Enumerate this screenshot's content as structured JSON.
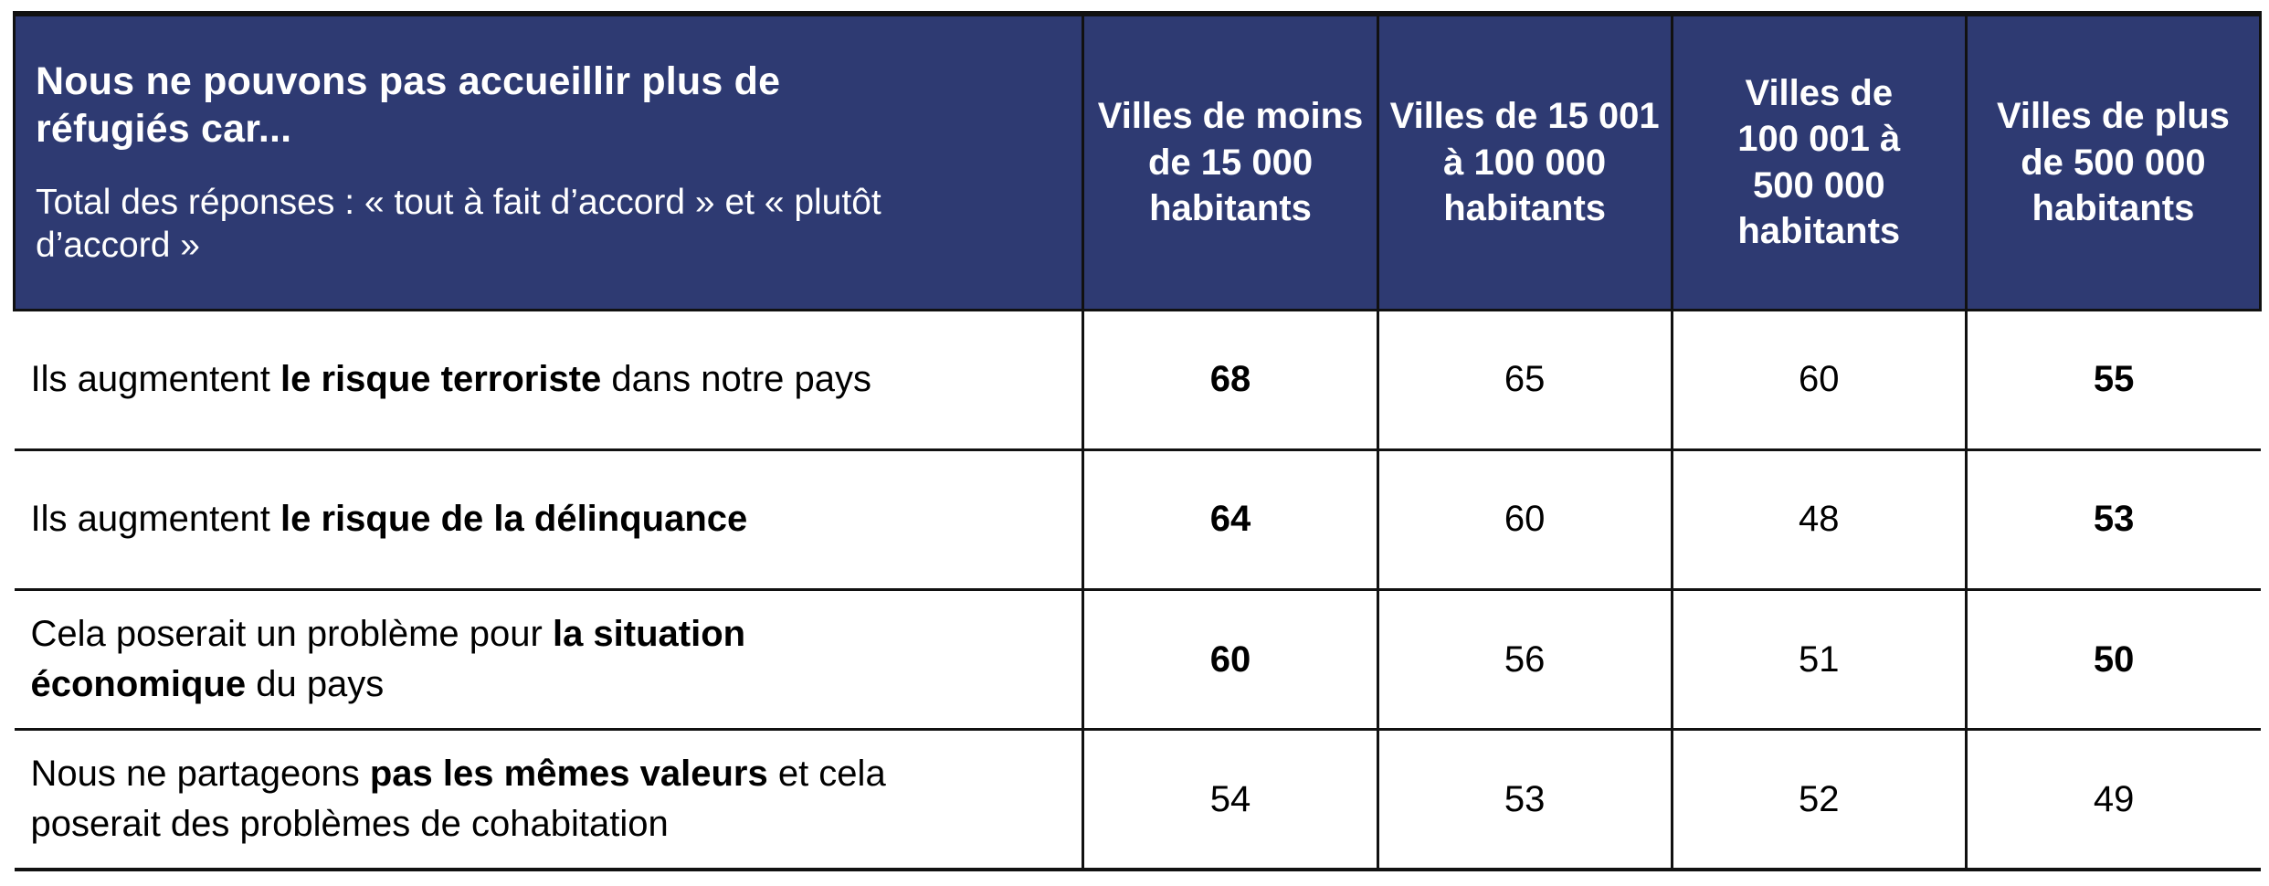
{
  "colors": {
    "header_bg": "#2e3a72",
    "header_text": "#ffffff",
    "body_text": "#000000",
    "grid": "#111111"
  },
  "table": {
    "header": {
      "title": "Nous ne pouvons pas accueillir plus de réfugiés car...",
      "subtitle": "Total des réponses : « tout à fait d’accord » et « plutôt d’accord »",
      "columns": [
        "Villes de moins de 15 000 habitants",
        "Villes de 15 001 à 100 000 habitants",
        "Villes de 100 001 à 500 000 habitants",
        "Villes de plus de 500 000 habitants"
      ]
    },
    "rows": [
      {
        "label_segments": [
          {
            "t": "Ils augmentent ",
            "b": false
          },
          {
            "t": "le risque terroriste",
            "b": true
          },
          {
            "t": " dans notre pays",
            "b": false
          }
        ],
        "values": [
          {
            "v": "68",
            "b": true
          },
          {
            "v": "65",
            "b": false
          },
          {
            "v": "60",
            "b": false
          },
          {
            "v": "55",
            "b": true
          }
        ]
      },
      {
        "label_segments": [
          {
            "t": "Ils augmentent ",
            "b": false
          },
          {
            "t": "le risque de la délinquance",
            "b": true
          }
        ],
        "values": [
          {
            "v": "64",
            "b": true
          },
          {
            "v": "60",
            "b": false
          },
          {
            "v": "48",
            "b": false
          },
          {
            "v": "53",
            "b": true
          }
        ]
      },
      {
        "label_segments": [
          {
            "t": "Cela poserait un problème pour ",
            "b": false
          },
          {
            "t": "la situation économique",
            "b": true
          },
          {
            "t": " du pays",
            "b": false
          }
        ],
        "values": [
          {
            "v": "60",
            "b": true
          },
          {
            "v": "56",
            "b": false
          },
          {
            "v": "51",
            "b": false
          },
          {
            "v": "50",
            "b": true
          }
        ]
      },
      {
        "label_segments": [
          {
            "t": "Nous ne partageons ",
            "b": false
          },
          {
            "t": "pas les mêmes valeurs",
            "b": true
          },
          {
            "t": " et cela poserait des problèmes de cohabitation",
            "b": false
          }
        ],
        "values": [
          {
            "v": "54",
            "b": false
          },
          {
            "v": "53",
            "b": false
          },
          {
            "v": "52",
            "b": false
          },
          {
            "v": "49",
            "b": false
          }
        ]
      }
    ]
  },
  "chart_data": {
    "type": "table",
    "title": "Nous ne pouvons pas accueillir plus de réfugiés car...",
    "subtitle": "Total des réponses : « tout à fait d’accord » et « plutôt d’accord »",
    "columns": [
      "Villes de moins de 15 000 habitants",
      "Villes de 15 001 à 100 000 habitants",
      "Villes de 100 001 à 500 000 habitants",
      "Villes de plus de 500 000 habitants"
    ],
    "row_labels": [
      "Ils augmentent le risque terroriste dans notre pays",
      "Ils augmentent le risque de la délinquance",
      "Cela poserait un problème pour la situation économique du pays",
      "Nous ne partageons pas les mêmes valeurs et cela poserait des problèmes de cohabitation"
    ],
    "values": [
      [
        68,
        65,
        60,
        55
      ],
      [
        64,
        60,
        48,
        53
      ],
      [
        60,
        56,
        51,
        50
      ],
      [
        54,
        53,
        52,
        49
      ]
    ]
  }
}
